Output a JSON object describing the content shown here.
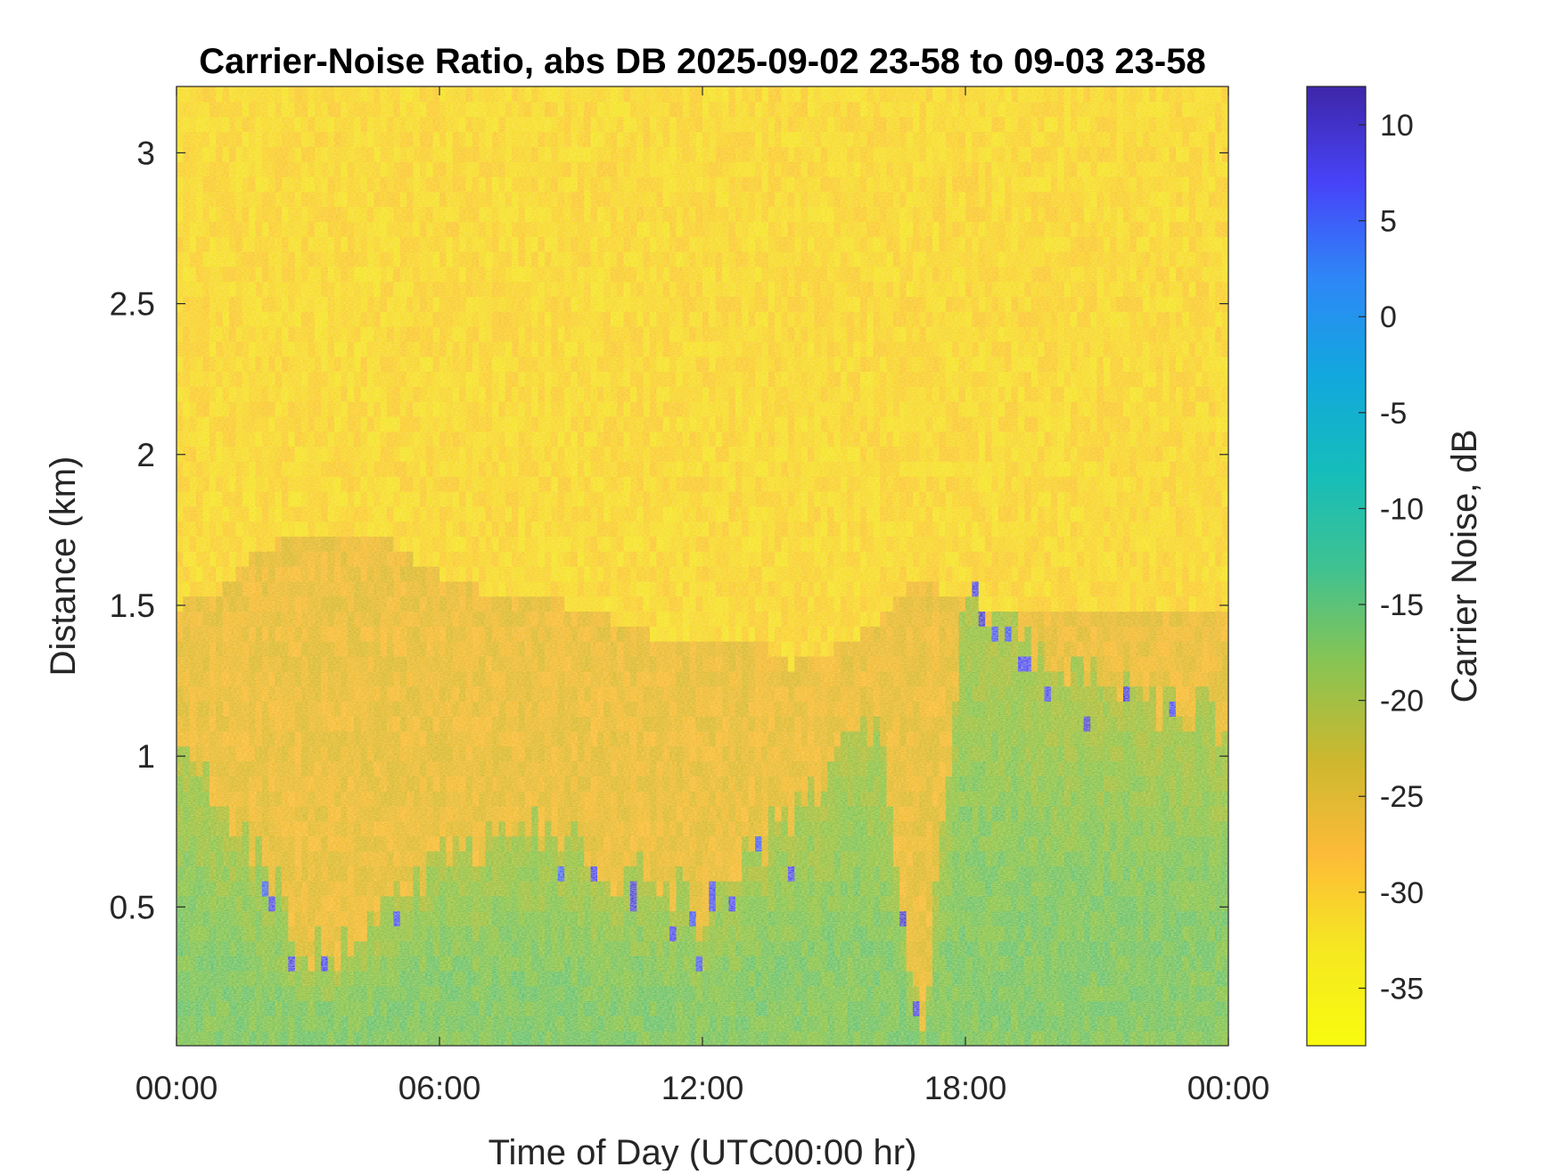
{
  "chart_data": {
    "type": "heatmap",
    "title": "Carrier-Noise Ratio, abs DB 2025-09-02 23-58 to 09-03 23-58",
    "xlabel": "Time of Day (UTC00:00 hr)",
    "ylabel": "Distance (km)",
    "xlim": [
      0,
      24
    ],
    "ylim": [
      0.04,
      3.22
    ],
    "x_ticks": [
      0,
      6,
      12,
      18,
      24
    ],
    "x_tick_labels": [
      "00:00",
      "06:00",
      "12:00",
      "18:00",
      "00:00"
    ],
    "y_ticks": [
      0.5,
      1,
      1.5,
      2,
      2.5,
      3
    ],
    "y_tick_labels": [
      "0.5",
      "1",
      "1.5",
      "2",
      "2.5",
      "3"
    ],
    "colorbar": {
      "label": "Carrier Noise, dB",
      "range": [
        -38,
        12
      ],
      "ticks": [
        10,
        5,
        0,
        -5,
        -10,
        -15,
        -20,
        -25,
        -30,
        -35
      ],
      "tick_labels": [
        "10",
        "5",
        "0",
        "-5",
        "-10",
        "-15",
        "-20",
        "-25",
        "-30",
        "-35"
      ],
      "colormap": "parula",
      "colormap_stops": [
        "#3e26a8",
        "#4743f8",
        "#2e87f7",
        "#12a7de",
        "#14bdbb",
        "#3ec292",
        "#88c453",
        "#cbb82f",
        "#fdbb38",
        "#f5e821",
        "#f9fb0e"
      ]
    },
    "boundary_layer_top_km": {
      "x_hours": [
        0,
        1,
        2,
        3,
        4,
        5,
        6,
        7,
        8,
        9,
        10,
        11,
        12,
        13,
        14,
        15,
        16,
        17,
        18,
        19,
        20,
        21,
        22,
        23,
        24
      ],
      "values": [
        1.5,
        1.55,
        1.7,
        1.72,
        1.75,
        1.7,
        1.6,
        1.55,
        1.55,
        1.5,
        1.45,
        1.4,
        1.4,
        1.4,
        1.3,
        1.35,
        1.45,
        1.6,
        1.5,
        1.45,
        1.5,
        1.5,
        1.5,
        1.5,
        1.5
      ]
    },
    "aerosol_layer_top_km": {
      "x_hours": [
        0,
        1,
        2,
        3,
        4,
        5,
        6,
        7,
        8,
        9,
        10,
        11,
        12,
        13,
        14,
        15,
        16,
        17,
        18,
        19,
        20,
        21,
        22,
        23,
        24
      ],
      "values": [
        1.0,
        0.85,
        0.65,
        0.38,
        0.35,
        0.5,
        0.65,
        0.72,
        0.78,
        0.75,
        0.62,
        0.6,
        0.45,
        0.65,
        0.8,
        1.0,
        1.15,
        0.04,
        1.5,
        1.4,
        1.35,
        1.3,
        1.2,
        1.15,
        1.1
      ]
    }
  }
}
